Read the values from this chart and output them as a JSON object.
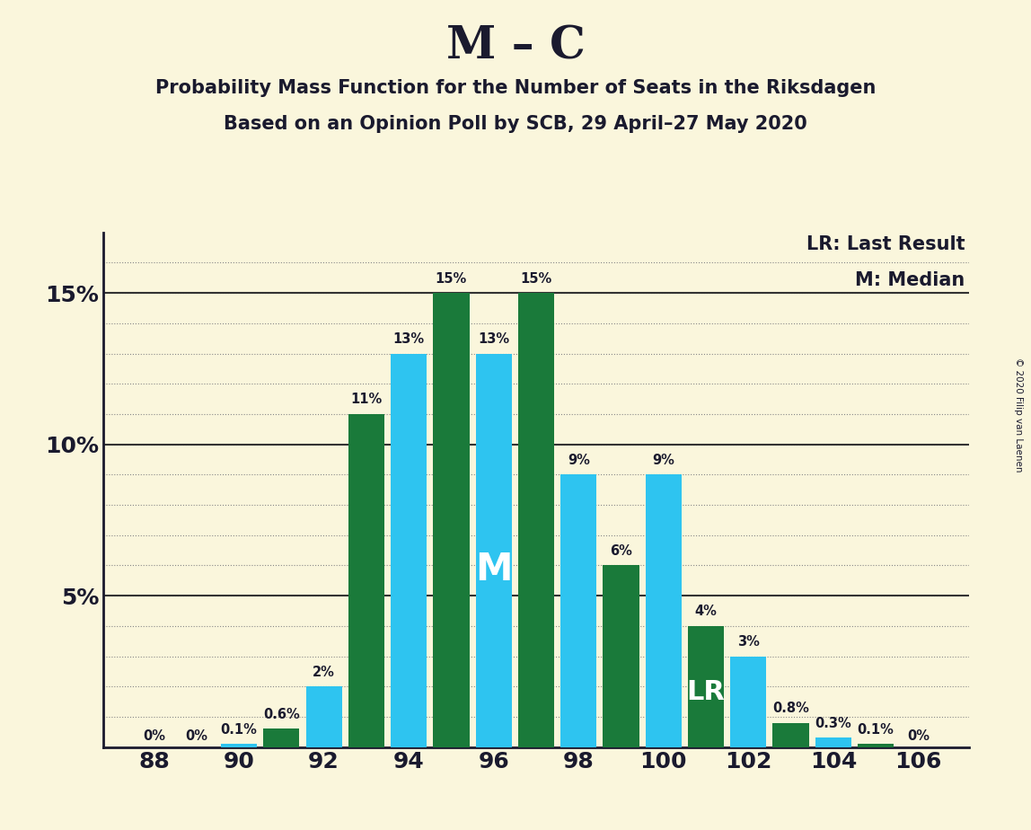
{
  "title": "M – C",
  "subtitle1": "Probability Mass Function for the Number of Seats in the Riksdagen",
  "subtitle2": "Based on an Opinion Poll by SCB, 29 April–27 May 2020",
  "copyright": "© 2020 Filip van Laenen",
  "legend1": "LR: Last Result",
  "legend2": "M: Median",
  "seats": [
    88,
    89,
    90,
    91,
    92,
    93,
    94,
    95,
    96,
    97,
    98,
    99,
    100,
    101,
    102,
    103,
    104,
    105,
    106
  ],
  "probabilities": [
    0.0,
    0.0,
    0.1,
    0.6,
    2.0,
    11.0,
    13.0,
    15.0,
    13.0,
    15.0,
    9.0,
    6.0,
    9.0,
    4.0,
    3.0,
    0.8,
    0.3,
    0.1,
    0.0
  ],
  "labels": [
    "0%",
    "0%",
    "0.1%",
    "0.6%",
    "2%",
    "11%",
    "13%",
    "15%",
    "13%",
    "15%",
    "9%",
    "6%",
    "9%",
    "4%",
    "3%",
    "0.8%",
    "0.3%",
    "0.1%",
    "0%"
  ],
  "median_seat": 96,
  "lr_seat": 101,
  "cyan_color": "#2EC4F0",
  "green_color": "#1A7A3A",
  "bg_color": "#FAF6DC",
  "text_color": "#1A1A2E",
  "ylim": [
    0,
    17
  ],
  "xtick_positions": [
    88,
    90,
    92,
    94,
    96,
    98,
    100,
    102,
    104,
    106
  ],
  "bar_width": 0.85
}
